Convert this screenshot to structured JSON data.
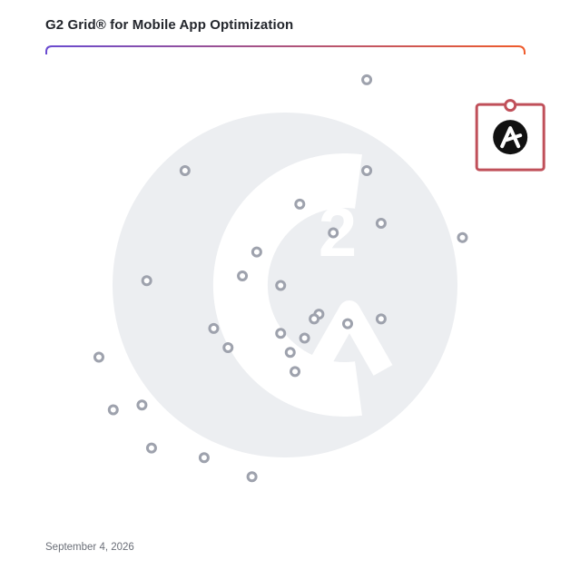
{
  "chart_data": {
    "type": "scatter",
    "title": "G2 Grid® for Mobile App Optimization",
    "date": "September 4, 2026",
    "xlim": [
      0,
      100
    ],
    "ylim": [
      0,
      100
    ],
    "grid": "quadrants",
    "colors": {
      "gradient_top_left": "#6a4bd0",
      "gradient_top_right": "#ef5b2b",
      "gradient_bottom_left": "#2aa3db",
      "gradient_bottom_right": "#8b3fb8",
      "point_stroke": "#9ea2ad",
      "highlight_border": "#c0505a",
      "watermark": "#eceef1"
    },
    "highlight": {
      "x": 97,
      "y": 81,
      "icon": "a-logo-icon"
    },
    "points": [
      {
        "x": 67,
        "y": 93
      },
      {
        "x": 29,
        "y": 74
      },
      {
        "x": 67,
        "y": 74
      },
      {
        "x": 53,
        "y": 67
      },
      {
        "x": 70,
        "y": 63
      },
      {
        "x": 60,
        "y": 61
      },
      {
        "x": 87,
        "y": 60
      },
      {
        "x": 44,
        "y": 57
      },
      {
        "x": 41,
        "y": 52
      },
      {
        "x": 21,
        "y": 51
      },
      {
        "x": 49,
        "y": 50
      },
      {
        "x": 57,
        "y": 44
      },
      {
        "x": 56,
        "y": 43
      },
      {
        "x": 63,
        "y": 42
      },
      {
        "x": 70,
        "y": 43
      },
      {
        "x": 35,
        "y": 41
      },
      {
        "x": 49,
        "y": 40
      },
      {
        "x": 54,
        "y": 39
      },
      {
        "x": 38,
        "y": 37
      },
      {
        "x": 51,
        "y": 36
      },
      {
        "x": 11,
        "y": 35
      },
      {
        "x": 52,
        "y": 32
      },
      {
        "x": 20,
        "y": 25
      },
      {
        "x": 14,
        "y": 24
      },
      {
        "x": 22,
        "y": 16
      },
      {
        "x": 33,
        "y": 14
      },
      {
        "x": 43,
        "y": 10
      }
    ]
  }
}
